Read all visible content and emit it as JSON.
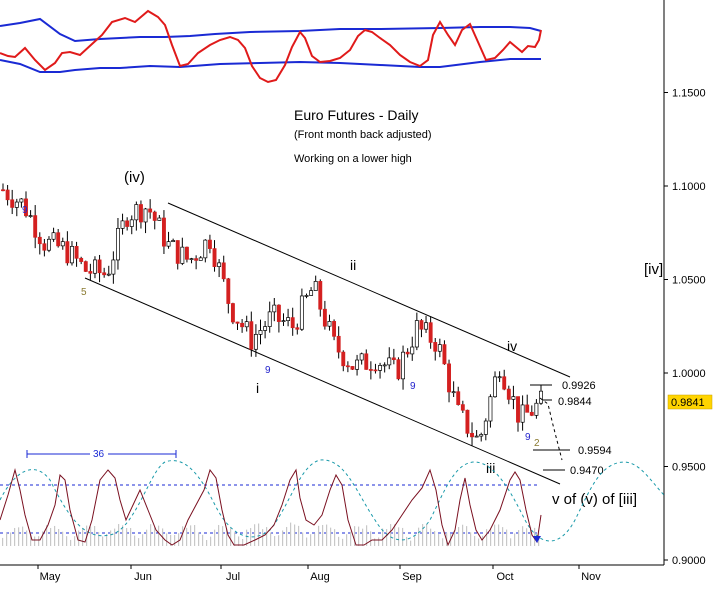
{
  "chart_data": {
    "type": "candlestick",
    "title": "Euro Futures - Daily",
    "subtitle": "(Front month back adjusted)",
    "note": "Working on a lower high",
    "y_axis": {
      "ticks": [
        1.15,
        1.1,
        1.05,
        1.0,
        0.95,
        0.9
      ],
      "tick_labels": [
        "1.1500",
        "1.1000",
        "1.0500",
        "1.0000",
        "0.9500",
        "0.9000"
      ],
      "ylim": [
        0.9,
        1.175
      ]
    },
    "x_axis": {
      "tick_labels": [
        "May",
        "Jun",
        "Jul",
        "Aug",
        "Sep",
        "Oct",
        "Nov"
      ]
    },
    "last_price": "0.9841",
    "price_path": [
      [
        1.085,
        1.098
      ],
      [
        1.09,
        1.09
      ],
      [
        1.078,
        1.07
      ],
      [
        1.066,
        1.066
      ],
      [
        1.063,
        1.055
      ],
      [
        1.05,
        1.053
      ],
      [
        1.068,
        1.085
      ],
      [
        1.09,
        1.089
      ],
      [
        1.08,
        1.068
      ],
      [
        1.055,
        1.06
      ],
      [
        1.068,
        1.072
      ],
      [
        1.064,
        1.035
      ],
      [
        1.02,
        1.018
      ],
      [
        1.03,
        1.03
      ],
      [
        1.02,
        1.025
      ],
      [
        1.04,
        1.046
      ],
      [
        1.03,
        1.015
      ],
      [
        0.998,
        1.003
      ],
      [
        1.003,
        1.008
      ],
      [
        0.998,
        1.0
      ],
      [
        1.008,
        1.024
      ],
      [
        1.022,
        1.016
      ],
      [
        0.988,
        0.978
      ],
      [
        0.965,
        0.963
      ],
      [
        0.993,
        1.005
      ],
      [
        0.99,
        0.975
      ],
      [
        0.97,
        0.984
      ]
    ],
    "channel_labels": [
      "(iv)",
      "ii",
      "i",
      "iii",
      "iv"
    ],
    "small_labels": [
      "9",
      "5",
      "9",
      "9",
      "9",
      "2"
    ],
    "levels": [
      {
        "label": "0.9926",
        "value": 0.9926
      },
      {
        "label": "0.9844",
        "value": 0.9844
      },
      {
        "label": "0.9594",
        "value": 0.9594
      },
      {
        "label": "0.9470",
        "value": 0.947
      }
    ],
    "right_labels": [
      "[iv]",
      "v of (v) of [iii]"
    ],
    "cycle_label": "36"
  }
}
